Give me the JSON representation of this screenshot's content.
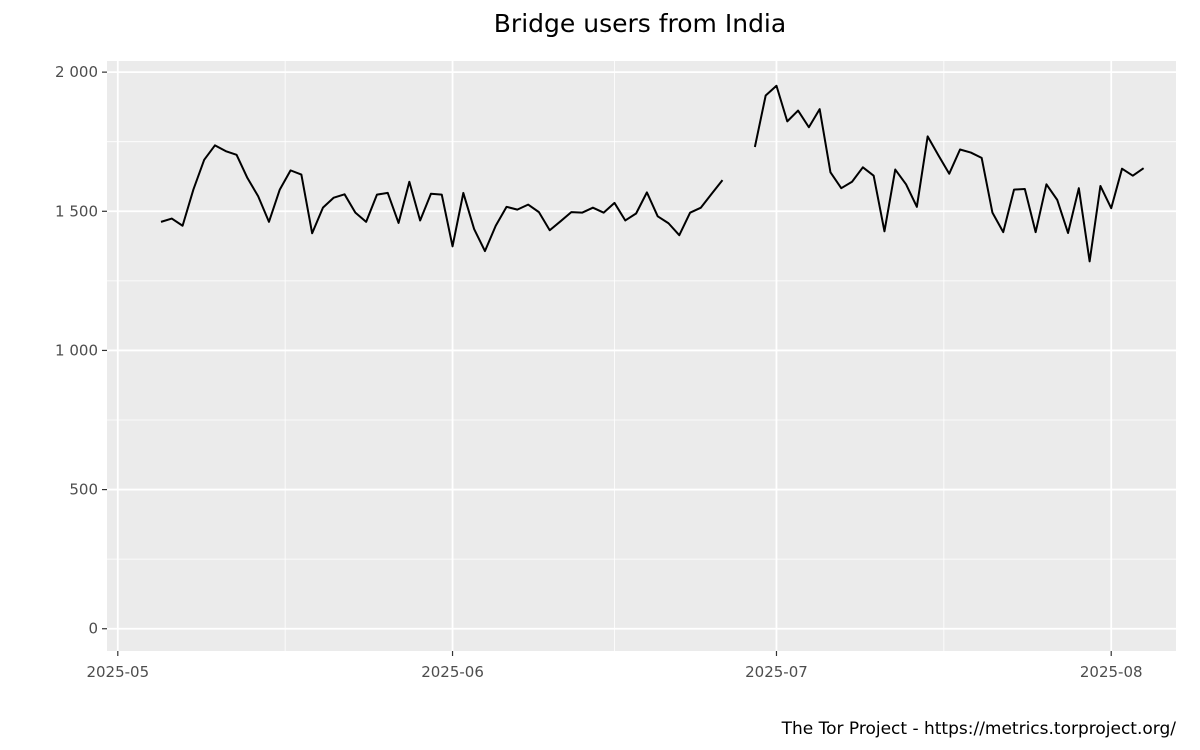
{
  "chart_data": {
    "type": "line",
    "title": "Bridge users from India",
    "caption": "The Tor Project - https://metrics.torproject.org/",
    "xlabel": "",
    "ylabel": "",
    "x_range": [
      "2025-04-30",
      "2025-08-07"
    ],
    "ylim": [
      -80,
      2040
    ],
    "y_ticks": [
      0,
      500,
      1000,
      1500,
      2000
    ],
    "y_tick_labels": [
      "0",
      "500",
      "1 000",
      "1 500",
      "2 000"
    ],
    "x_ticks": [
      "2025-05-01",
      "2025-06-01",
      "2025-07-01",
      "2025-08-01"
    ],
    "x_tick_labels": [
      "2025-05",
      "2025-06",
      "2025-07",
      "2025-08"
    ],
    "grid": true,
    "legend": "none",
    "colors": {
      "panel": "#ebebeb",
      "grid": "#ffffff",
      "line": "#000000"
    },
    "series": [
      {
        "values": [
          {
            "x": "2025-05-05",
            "y": 1462
          },
          {
            "x": "2025-05-06",
            "y": 1474
          },
          {
            "x": "2025-05-07",
            "y": 1448
          },
          {
            "x": "2025-05-08",
            "y": 1578
          },
          {
            "x": "2025-05-09",
            "y": 1685
          },
          {
            "x": "2025-05-10",
            "y": 1737
          },
          {
            "x": "2025-05-11",
            "y": 1716
          },
          {
            "x": "2025-05-12",
            "y": 1703
          },
          {
            "x": "2025-05-13",
            "y": 1620
          },
          {
            "x": "2025-05-14",
            "y": 1554
          },
          {
            "x": "2025-05-15",
            "y": 1462
          },
          {
            "x": "2025-05-16",
            "y": 1578
          },
          {
            "x": "2025-05-17",
            "y": 1647
          },
          {
            "x": "2025-05-18",
            "y": 1632
          },
          {
            "x": "2025-05-19",
            "y": 1421
          },
          {
            "x": "2025-05-20",
            "y": 1513
          },
          {
            "x": "2025-05-21",
            "y": 1549
          },
          {
            "x": "2025-05-22",
            "y": 1561
          },
          {
            "x": "2025-05-23",
            "y": 1495
          },
          {
            "x": "2025-05-24",
            "y": 1462
          },
          {
            "x": "2025-05-25",
            "y": 1560
          },
          {
            "x": "2025-05-26",
            "y": 1566
          },
          {
            "x": "2025-05-27",
            "y": 1458
          },
          {
            "x": "2025-05-28",
            "y": 1606
          },
          {
            "x": "2025-05-29",
            "y": 1467
          },
          {
            "x": "2025-05-30",
            "y": 1563
          },
          {
            "x": "2025-05-31",
            "y": 1560
          },
          {
            "x": "2025-06-01",
            "y": 1374
          },
          {
            "x": "2025-06-02",
            "y": 1566
          },
          {
            "x": "2025-06-03",
            "y": 1436
          },
          {
            "x": "2025-06-04",
            "y": 1357
          },
          {
            "x": "2025-06-05",
            "y": 1448
          },
          {
            "x": "2025-06-06",
            "y": 1516
          },
          {
            "x": "2025-06-07",
            "y": 1506
          },
          {
            "x": "2025-06-08",
            "y": 1524
          },
          {
            "x": "2025-06-09",
            "y": 1497
          },
          {
            "x": "2025-06-10",
            "y": 1432
          },
          {
            "x": "2025-06-11",
            "y": 1464
          },
          {
            "x": "2025-06-12",
            "y": 1497
          },
          {
            "x": "2025-06-13",
            "y": 1495
          },
          {
            "x": "2025-06-14",
            "y": 1513
          },
          {
            "x": "2025-06-15",
            "y": 1495
          },
          {
            "x": "2025-06-16",
            "y": 1530
          },
          {
            "x": "2025-06-17",
            "y": 1467
          },
          {
            "x": "2025-06-18",
            "y": 1492
          },
          {
            "x": "2025-06-19",
            "y": 1568
          },
          {
            "x": "2025-06-20",
            "y": 1482
          },
          {
            "x": "2025-06-21",
            "y": 1457
          },
          {
            "x": "2025-06-22",
            "y": 1414
          },
          {
            "x": "2025-06-23",
            "y": 1495
          },
          {
            "x": "2025-06-24",
            "y": 1513
          },
          {
            "x": "2025-06-25",
            "y": 1563
          },
          {
            "x": "2025-06-26",
            "y": 1612
          }
        ]
      },
      {
        "values": [
          {
            "x": "2025-06-29",
            "y": 1731
          },
          {
            "x": "2025-06-30",
            "y": 1916
          },
          {
            "x": "2025-07-01",
            "y": 1951
          },
          {
            "x": "2025-07-02",
            "y": 1823
          },
          {
            "x": "2025-07-03",
            "y": 1862
          },
          {
            "x": "2025-07-04",
            "y": 1802
          },
          {
            "x": "2025-07-05",
            "y": 1867
          },
          {
            "x": "2025-07-06",
            "y": 1640
          },
          {
            "x": "2025-07-07",
            "y": 1583
          },
          {
            "x": "2025-07-08",
            "y": 1606
          },
          {
            "x": "2025-07-09",
            "y": 1658
          },
          {
            "x": "2025-07-10",
            "y": 1628
          },
          {
            "x": "2025-07-11",
            "y": 1428
          },
          {
            "x": "2025-07-12",
            "y": 1650
          },
          {
            "x": "2025-07-13",
            "y": 1597
          },
          {
            "x": "2025-07-14",
            "y": 1516
          },
          {
            "x": "2025-07-15",
            "y": 1769
          },
          {
            "x": "2025-07-16",
            "y": 1701
          },
          {
            "x": "2025-07-17",
            "y": 1635
          },
          {
            "x": "2025-07-18",
            "y": 1722
          },
          {
            "x": "2025-07-19",
            "y": 1711
          },
          {
            "x": "2025-07-20",
            "y": 1692
          },
          {
            "x": "2025-07-21",
            "y": 1495
          },
          {
            "x": "2025-07-22",
            "y": 1425
          },
          {
            "x": "2025-07-23",
            "y": 1578
          },
          {
            "x": "2025-07-24",
            "y": 1580
          },
          {
            "x": "2025-07-25",
            "y": 1425
          },
          {
            "x": "2025-07-26",
            "y": 1597
          },
          {
            "x": "2025-07-27",
            "y": 1541
          },
          {
            "x": "2025-07-28",
            "y": 1422
          },
          {
            "x": "2025-07-29",
            "y": 1583
          },
          {
            "x": "2025-07-30",
            "y": 1320
          },
          {
            "x": "2025-07-31",
            "y": 1591
          },
          {
            "x": "2025-08-01",
            "y": 1511
          },
          {
            "x": "2025-08-02",
            "y": 1653
          },
          {
            "x": "2025-08-03",
            "y": 1628
          },
          {
            "x": "2025-08-04",
            "y": 1655
          }
        ]
      }
    ]
  }
}
